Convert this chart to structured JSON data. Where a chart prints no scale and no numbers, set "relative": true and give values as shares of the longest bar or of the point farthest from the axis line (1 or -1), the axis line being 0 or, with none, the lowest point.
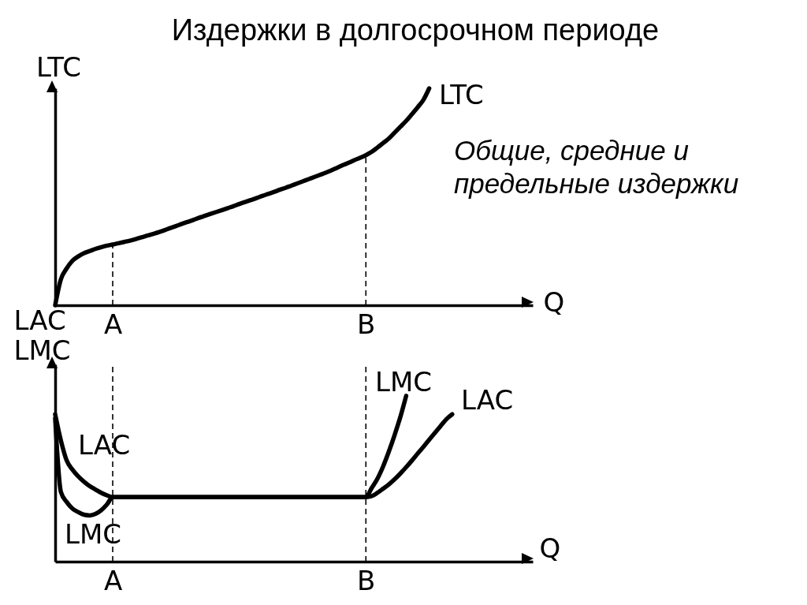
{
  "chart_data": [
    {
      "type": "line",
      "title": "Издержки в долгосрочном периоде",
      "xlabel": "Q",
      "ylabel": "LTC",
      "relative": true,
      "categories": [
        null,
        null,
        null,
        null,
        null,
        null,
        null,
        null,
        null,
        null,
        "A",
        null,
        null,
        null,
        null,
        null,
        null,
        null,
        null,
        null,
        null,
        null,
        null,
        null,
        null,
        null,
        null,
        null,
        null,
        null,
        null,
        null,
        null,
        null,
        null,
        null,
        null,
        null,
        null,
        null,
        null,
        null,
        null,
        null,
        null,
        null,
        null,
        null,
        null,
        null,
        null,
        null,
        null,
        null,
        "B",
        null,
        null,
        null,
        null,
        null,
        null,
        null,
        null,
        null,
        null,
        null,
        null,
        null,
        null,
        null,
        null,
        null,
        null,
        null,
        null,
        null,
        null,
        null,
        null,
        null,
        null,
        null,
        null,
        null
      ],
      "series": [
        {
          "name": "LTC",
          "color": "#000000",
          "values": [
            0,
            0.12,
            0.17,
            0.205,
            0.225,
            0.24,
            0.25,
            0.26,
            0.268,
            0.275,
            0.28,
            0.286,
            0.292,
            0.298,
            0.305,
            0.313,
            0.321,
            0.329,
            0.337,
            0.346,
            0.356,
            0.365,
            0.375,
            0.384,
            0.393,
            0.403,
            0.412,
            0.421,
            0.43,
            0.439,
            0.448,
            0.457,
            0.467,
            0.476,
            0.485,
            0.494,
            0.504,
            0.513,
            0.522,
            0.532,
            0.541,
            0.551,
            0.561,
            0.571,
            0.581,
            0.591,
            0.601,
            0.611,
            0.622,
            0.634,
            0.646,
            0.657,
            0.669,
            0.68,
            0.692,
            0.707,
            0.727,
            0.748,
            0.769,
            0.796,
            0.823,
            0.85,
            0.881,
            0.913,
            0.947,
            1,
            null,
            null,
            null,
            null,
            null,
            null,
            null,
            null,
            null,
            null,
            null,
            null,
            null,
            null,
            null,
            null,
            null,
            null
          ]
        }
      ],
      "ref_lines": [
        {
          "axis": "x",
          "value": "A",
          "line_style": "dashed",
          "color": "#000000"
        },
        {
          "axis": "x",
          "value": "B",
          "line_style": "dashed",
          "color": "#000000"
        }
      ],
      "annotations": [
        "Общие, средние и предельные издержки"
      ]
    },
    {
      "type": "line",
      "xlabel": "Q",
      "ylabel": "LAC LMC",
      "relative": true,
      "categories": [
        null,
        null,
        null,
        null,
        null,
        null,
        null,
        null,
        null,
        null,
        "A",
        null,
        null,
        null,
        null,
        null,
        null,
        null,
        null,
        null,
        null,
        null,
        null,
        null,
        null,
        null,
        null,
        null,
        null,
        null,
        null,
        null,
        null,
        null,
        null,
        null,
        null,
        null,
        null,
        null,
        null,
        null,
        null,
        null,
        null,
        null,
        null,
        null,
        null,
        null,
        null,
        null,
        null,
        null,
        "B",
        null,
        null,
        null,
        null,
        null,
        null,
        null,
        null,
        null,
        null,
        null,
        null,
        null,
        null,
        null,
        null,
        null,
        null,
        null,
        null,
        null,
        null,
        null,
        null,
        null,
        null,
        null,
        null,
        null
      ],
      "series": [
        {
          "name": "LAC",
          "color": "#000000",
          "values": [
            0.889,
            0.73,
            0.61,
            0.555,
            0.515,
            0.483,
            0.456,
            0.435,
            0.415,
            0.4,
            0.389,
            0.389,
            0.389,
            0.389,
            0.389,
            0.389,
            0.389,
            0.389,
            0.389,
            0.389,
            0.389,
            0.389,
            0.389,
            0.389,
            0.389,
            0.389,
            0.389,
            0.389,
            0.389,
            0.389,
            0.389,
            0.389,
            0.389,
            0.389,
            0.389,
            0.389,
            0.389,
            0.389,
            0.389,
            0.389,
            0.389,
            0.389,
            0.389,
            0.389,
            0.389,
            0.389,
            0.389,
            0.389,
            0.389,
            0.389,
            0.389,
            0.389,
            0.389,
            0.389,
            0.389,
            0.395,
            0.415,
            0.44,
            0.466,
            0.497,
            0.532,
            0.57,
            0.61,
            0.652,
            0.693,
            0.735,
            0.777,
            0.819,
            0.86,
            0.889,
            null,
            null,
            null,
            null,
            null,
            null,
            null,
            null,
            null,
            null,
            null,
            null,
            null,
            null
          ]
        },
        {
          "name": "LMC",
          "color": "#000000",
          "values": [
            0.865,
            0.42,
            0.36,
            0.32,
            0.299,
            0.283,
            0.279,
            0.288,
            0.31,
            0.345,
            0.389,
            0.389,
            0.389,
            0.389,
            0.389,
            0.389,
            0.389,
            0.389,
            0.389,
            0.389,
            0.389,
            0.389,
            0.389,
            0.389,
            0.389,
            0.389,
            0.389,
            0.389,
            0.389,
            0.389,
            0.389,
            0.389,
            0.389,
            0.389,
            0.389,
            0.389,
            0.389,
            0.389,
            0.389,
            0.389,
            0.389,
            0.389,
            0.389,
            0.389,
            0.389,
            0.389,
            0.389,
            0.389,
            0.389,
            0.389,
            0.389,
            0.389,
            0.389,
            0.389,
            0.389,
            0.444,
            0.5,
            0.575,
            0.665,
            0.765,
            0.874,
            1,
            null,
            null,
            null,
            null,
            null,
            null,
            null,
            null,
            null,
            null,
            null,
            null,
            null,
            null,
            null,
            null,
            null,
            null,
            null,
            null,
            null,
            null
          ]
        }
      ],
      "ref_lines": [
        {
          "axis": "x",
          "value": "A",
          "line_style": "dashed",
          "color": "#000000"
        },
        {
          "axis": "x",
          "value": "B",
          "line_style": "dashed",
          "color": "#000000"
        }
      ]
    }
  ]
}
